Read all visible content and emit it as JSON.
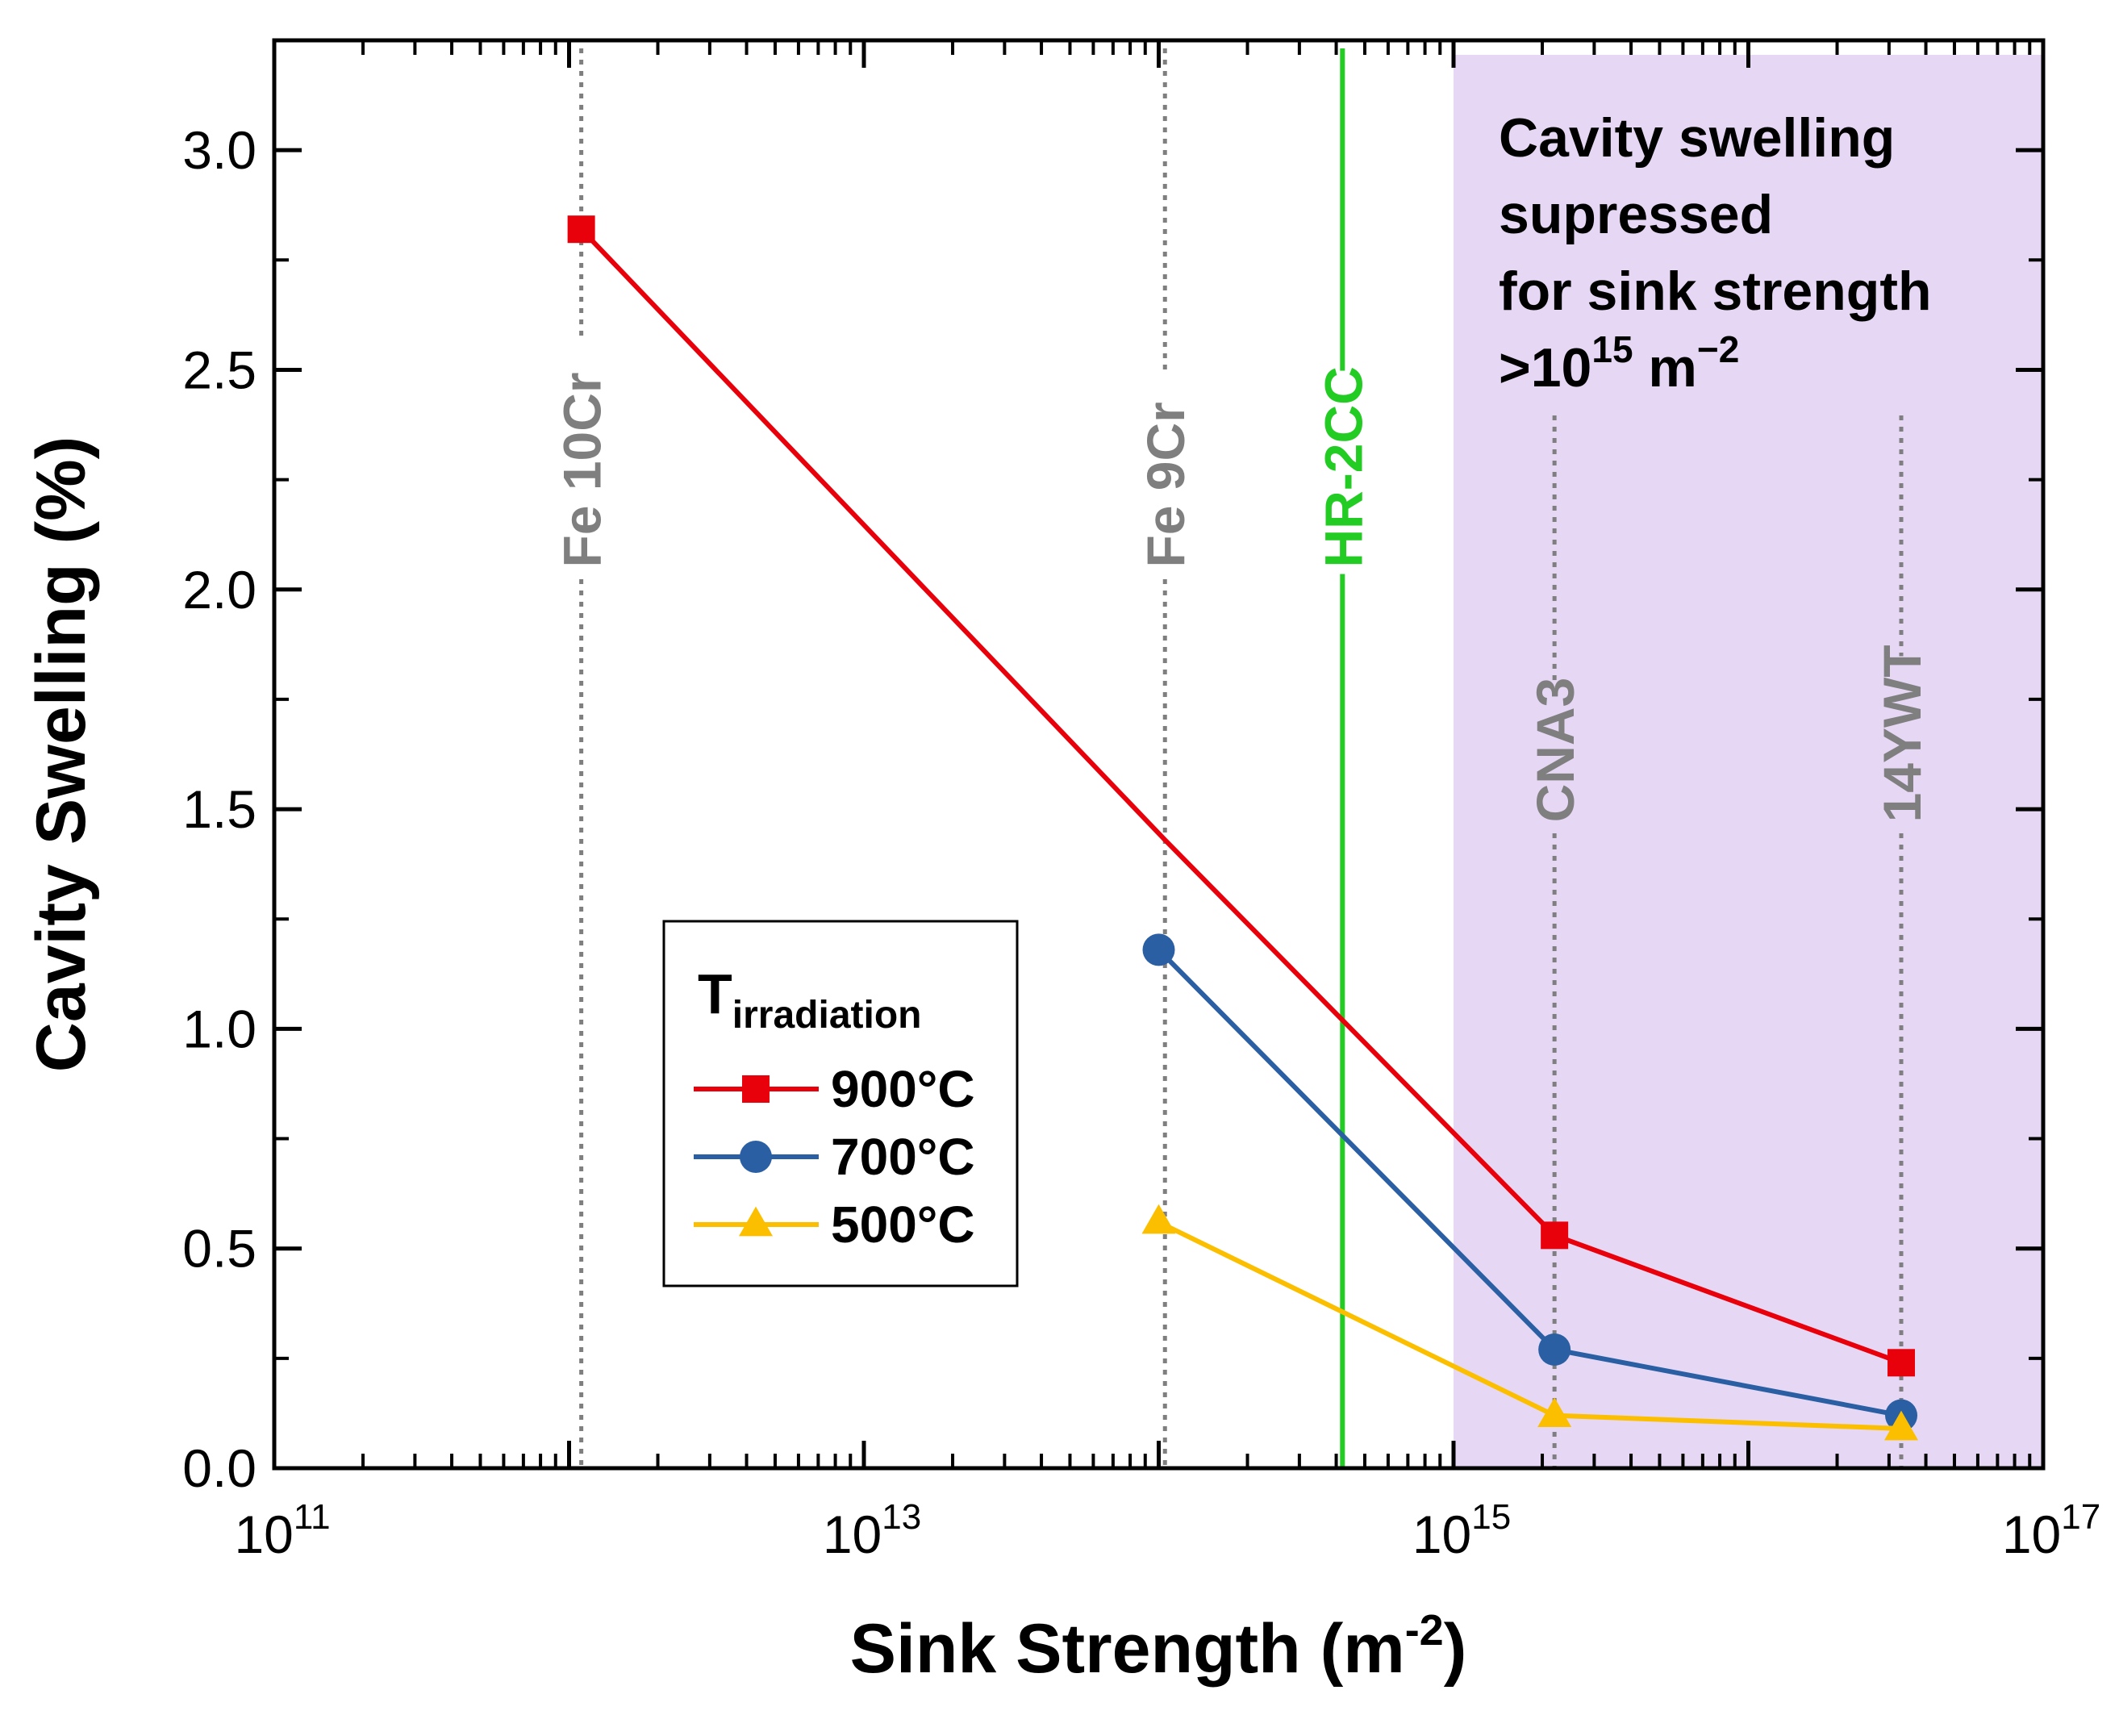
{
  "chart_data": {
    "type": "line",
    "xscale": "log",
    "xlabel": "Sink Strength (m",
    "xlabel_sup": "-2",
    "xlabel_close": ")",
    "ylabel": "Cavity Swelling (%)",
    "xlim": [
      100000000000.0,
      1e+17
    ],
    "ylim": [
      0,
      3.25
    ],
    "x_ticks": [
      {
        "value": 100000000000.0,
        "base": "10",
        "exp": "11"
      },
      {
        "value": 10000000000000.0,
        "base": "10",
        "exp": "13"
      },
      {
        "value": 1000000000000000.0,
        "base": "10",
        "exp": "15"
      },
      {
        "value": 1e+17,
        "base": "10",
        "exp": "17"
      }
    ],
    "y_ticks": [
      {
        "value": 0.0,
        "label": "0.0"
      },
      {
        "value": 0.5,
        "label": "0.5"
      },
      {
        "value": 1.0,
        "label": "1.0"
      },
      {
        "value": 1.5,
        "label": "1.5"
      },
      {
        "value": 2.0,
        "label": "2.0"
      },
      {
        "value": 2.5,
        "label": "2.5"
      },
      {
        "value": 3.0,
        "label": "3.0"
      }
    ],
    "series": [
      {
        "name": "900°C",
        "color": "#e8000b",
        "marker": "square",
        "x": [
          1100000000000.0,
          105000000000000.0,
          2200000000000000.0,
          3.3e+16
        ],
        "y": [
          2.82,
          1.43,
          0.53,
          0.24
        ]
      },
      {
        "name": "700°C",
        "color": "#2b5fa3",
        "marker": "circle",
        "x": [
          100000000000000.0,
          2200000000000000.0,
          3.3e+16
        ],
        "y": [
          1.18,
          0.27,
          0.12
        ]
      },
      {
        "name": "500°C",
        "color": "#fbbf00",
        "marker": "triangle",
        "x": [
          100000000000000.0,
          2200000000000000.0,
          3.3e+16
        ],
        "y": [
          0.56,
          0.12,
          0.09
        ]
      }
    ],
    "markers_on_points": {
      "900°C": [
        true,
        false,
        true,
        true
      ],
      "700°C": [
        true,
        true,
        true
      ],
      "500°C": [
        true,
        true,
        true
      ]
    },
    "reference_lines": [
      {
        "label": "Fe 10Cr",
        "x": 1100000000000.0,
        "style": "dotted",
        "color": "#7f7f7f",
        "label_y": 2.05
      },
      {
        "label": "Fe 9Cr",
        "x": 105000000000000.0,
        "style": "dotted",
        "color": "#7f7f7f",
        "label_y": 2.05
      },
      {
        "label": "HR-2CC",
        "x": 420000000000000.0,
        "style": "solid",
        "color": "#22cc22",
        "label_y": 2.05
      },
      {
        "label": "CNA3",
        "x": 2200000000000000.0,
        "style": "dotted",
        "color": "#7f7f7f",
        "label_y": 1.47
      },
      {
        "label": "14YWT",
        "x": 3.3e+16,
        "style": "dotted",
        "color": "#7f7f7f",
        "label_y": 1.47
      }
    ],
    "shaded_region": {
      "x_from": 1000000000000000.0,
      "x_to": 1e+17,
      "color": "#e6d8f5",
      "lines": [
        "Cavity swelling",
        "supressed",
        "for sink strength"
      ],
      "last_line_prefix": ">10",
      "last_line_exp": "15",
      "last_line_unit": " m",
      "last_line_unit_exp": "−2"
    },
    "legend": {
      "title_main": "T",
      "title_sub": "irradiation",
      "placement": "lower-center",
      "entries": [
        "900°C",
        "700°C",
        "500°C"
      ]
    }
  }
}
